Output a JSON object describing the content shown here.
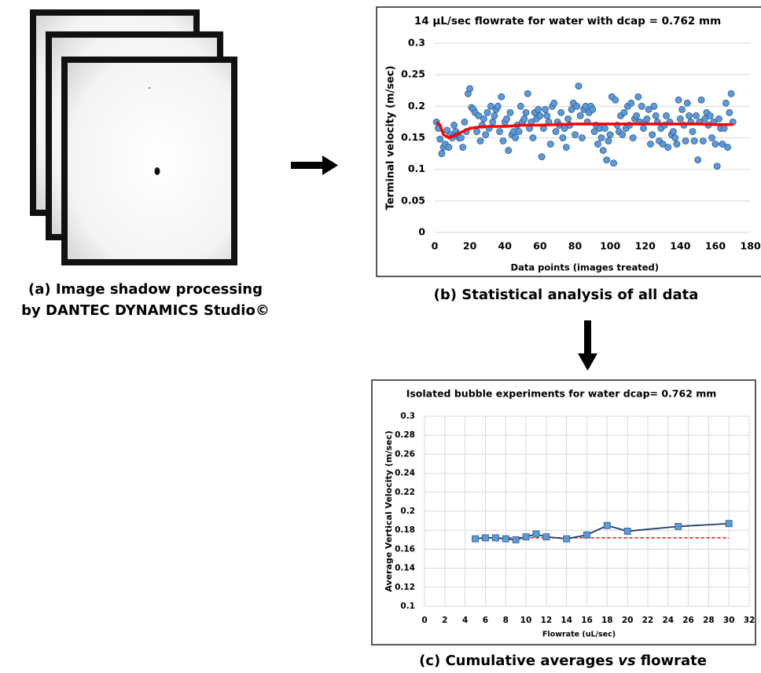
{
  "captions": {
    "a": [
      "(a) Image shadow processing",
      "by DANTEC DYNAMICS Studio©"
    ],
    "b": "(b) Statistical analysis of all data",
    "c": [
      "(c) Cumulative averages",
      "vs",
      "flowrate"
    ]
  },
  "chart_data": [
    {
      "type": "scatter",
      "title": "14 µL/sec flowrate for water with dcap = 0.762 mm",
      "x_label": "Data points (images treated)",
      "y_label": "Terminal velocity (m/sec)",
      "xlim": [
        0,
        180
      ],
      "xticks": [
        0,
        20,
        40,
        60,
        80,
        100,
        120,
        140,
        160,
        180
      ],
      "ylim": [
        0,
        0.3
      ],
      "yticks": [
        0,
        0.05,
        0.1,
        0.15,
        0.2,
        0.25,
        0.3
      ],
      "grid": "y",
      "x": [
        1,
        2,
        3,
        4,
        5,
        6,
        7,
        8,
        9,
        10,
        11,
        12,
        13,
        14,
        15,
        16,
        17,
        18,
        19,
        20,
        21,
        22,
        23,
        24,
        25,
        26,
        27,
        28,
        29,
        30,
        31,
        32,
        33,
        34,
        35,
        36,
        37,
        38,
        39,
        40,
        41,
        42,
        43,
        44,
        45,
        46,
        47,
        48,
        49,
        50,
        51,
        52,
        53,
        54,
        55,
        56,
        57,
        58,
        59,
        60,
        61,
        62,
        63,
        64,
        65,
        66,
        67,
        68,
        69,
        70,
        71,
        72,
        73,
        74,
        75,
        76,
        77,
        78,
        79,
        80,
        81,
        82,
        83,
        84,
        85,
        86,
        87,
        88,
        89,
        90,
        91,
        92,
        93,
        94,
        95,
        96,
        97,
        98,
        99,
        100,
        101,
        102,
        103,
        104,
        105,
        106,
        107,
        108,
        109,
        110,
        111,
        112,
        113,
        114,
        115,
        116,
        117,
        118,
        119,
        120,
        121,
        122,
        123,
        124,
        125,
        126,
        127,
        128,
        129,
        130,
        131,
        132,
        133,
        134,
        135,
        136,
        137,
        138,
        139,
        140,
        141,
        142,
        143,
        144,
        145,
        146,
        147,
        148,
        149,
        150,
        151,
        152,
        153,
        154,
        155,
        156,
        157,
        158,
        159,
        160,
        161,
        162,
        163,
        164,
        165,
        166,
        167,
        168,
        169,
        170
      ],
      "series": [
        {
          "type": "scatter",
          "color": "#5b9bd5",
          "values": [
            0.175,
            0.165,
            0.148,
            0.125,
            0.135,
            0.14,
            0.162,
            0.135,
            0.155,
            0.15,
            0.17,
            0.16,
            0.155,
            0.15,
            0.15,
            0.135,
            0.175,
            0.16,
            0.22,
            0.228,
            0.198,
            0.195,
            0.19,
            0.16,
            0.185,
            0.145,
            0.17,
            0.18,
            0.155,
            0.19,
            0.165,
            0.2,
            0.175,
            0.185,
            0.195,
            0.2,
            0.16,
            0.215,
            0.145,
            0.175,
            0.18,
            0.13,
            0.19,
            0.155,
            0.16,
            0.15,
            0.17,
            0.16,
            0.2,
            0.175,
            0.18,
            0.19,
            0.22,
            0.165,
            0.175,
            0.15,
            0.19,
            0.18,
            0.195,
            0.185,
            0.12,
            0.165,
            0.195,
            0.185,
            0.175,
            0.14,
            0.2,
            0.205,
            0.16,
            0.175,
            0.17,
            0.19,
            0.15,
            0.165,
            0.135,
            0.18,
            0.17,
            0.195,
            0.205,
            0.155,
            0.2,
            0.232,
            0.185,
            0.15,
            0.195,
            0.2,
            0.175,
            0.19,
            0.2,
            0.195,
            0.16,
            0.17,
            0.14,
            0.165,
            0.15,
            0.13,
            0.165,
            0.115,
            0.145,
            0.155,
            0.215,
            0.11,
            0.21,
            0.17,
            0.16,
            0.185,
            0.155,
            0.19,
            0.165,
            0.2,
            0.17,
            0.205,
            0.15,
            0.18,
            0.185,
            0.215,
            0.175,
            0.2,
            0.165,
            0.175,
            0.18,
            0.195,
            0.14,
            0.155,
            0.2,
            0.185,
            0.175,
            0.145,
            0.165,
            0.14,
            0.17,
            0.185,
            0.135,
            0.175,
            0.155,
            0.16,
            0.15,
            0.14,
            0.21,
            0.18,
            0.195,
            0.17,
            0.145,
            0.205,
            0.185,
            0.175,
            0.16,
            0.145,
            0.185,
            0.115,
            0.175,
            0.21,
            0.145,
            0.18,
            0.19,
            0.17,
            0.185,
            0.15,
            0.175,
            0.14,
            0.105,
            0.18,
            0.165,
            0.14,
            0.165,
            0.205,
            0.135,
            0.19,
            0.22,
            0.175
          ]
        },
        {
          "type": "line",
          "color": "#ff0000",
          "x": [
            1,
            3,
            5,
            8,
            10,
            13,
            16,
            20,
            25,
            30,
            40,
            50,
            60,
            70,
            80,
            90,
            100,
            110,
            120,
            130,
            140,
            150,
            160,
            170
          ],
          "values": [
            0.175,
            0.17,
            0.155,
            0.15,
            0.152,
            0.156,
            0.16,
            0.165,
            0.167,
            0.168,
            0.168,
            0.17,
            0.17,
            0.171,
            0.172,
            0.172,
            0.172,
            0.172,
            0.172,
            0.172,
            0.172,
            0.172,
            0.171,
            0.171
          ]
        }
      ]
    },
    {
      "type": "line",
      "title": "Isolated bubble experiments for water dcap= 0.762 mm",
      "x_label": "Flowrate (uL/sec)",
      "y_label": "Average Vertical Velocity (m/sec)",
      "xlim": [
        0,
        32
      ],
      "xticks": [
        0,
        2,
        4,
        6,
        8,
        10,
        12,
        14,
        16,
        18,
        20,
        22,
        24,
        26,
        28,
        30,
        32
      ],
      "ylim": [
        0.1,
        0.3
      ],
      "yticks": [
        0.1,
        0.12,
        0.14,
        0.16,
        0.18,
        0.2,
        0.22,
        0.24,
        0.26,
        0.28,
        0.3
      ],
      "grid": "both",
      "x": [
        5,
        6,
        7,
        8,
        9,
        10,
        11,
        12,
        14,
        16,
        18,
        20,
        25,
        30
      ],
      "series": [
        {
          "type": "line",
          "color": "#1f3864",
          "marker_color": "#5b9bd5",
          "values": [
            0.171,
            0.172,
            0.172,
            0.171,
            0.17,
            0.173,
            0.176,
            0.173,
            0.171,
            0.175,
            0.185,
            0.179,
            0.184,
            0.187
          ]
        },
        {
          "type": "dashed",
          "color": "#ff0000",
          "x": [
            5,
            30
          ],
          "values": [
            0.172,
            0.172
          ]
        }
      ]
    }
  ]
}
